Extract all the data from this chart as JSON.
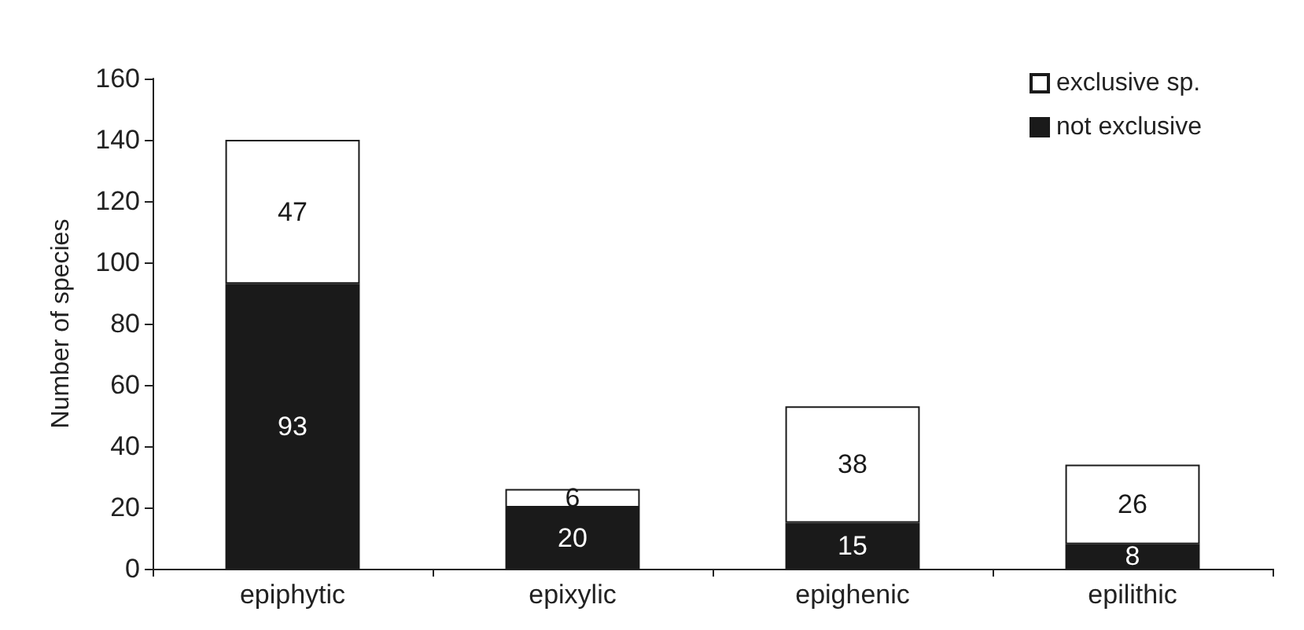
{
  "chart_data": {
    "type": "bar",
    "ylabel": "Number of species",
    "categories": [
      "epiphytic",
      "epixylic",
      "epighenic",
      "epilithic"
    ],
    "series": [
      {
        "name": "not exclusive",
        "color": "#1a1a1a",
        "values": [
          93,
          20,
          15,
          8
        ]
      },
      {
        "name": "exclusive sp.",
        "color": "#ffffff",
        "values": [
          47,
          6,
          38,
          26
        ]
      }
    ],
    "stacked": true,
    "data_labels": true,
    "ylim": [
      0,
      160
    ],
    "yticks": [
      0,
      20,
      40,
      60,
      80,
      100,
      120,
      140,
      160
    ],
    "grid": false,
    "legend": "top right"
  }
}
